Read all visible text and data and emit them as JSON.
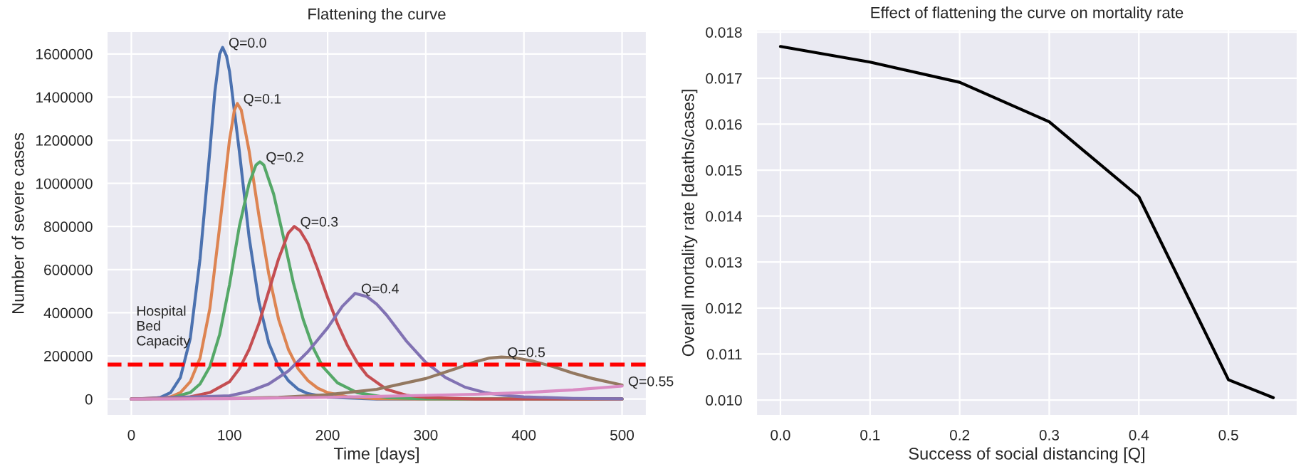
{
  "chart_data": [
    {
      "type": "line",
      "title": "Flattening the curve",
      "xlabel": "Time [days]",
      "ylabel": "Number of severe cases",
      "xlim": [
        -25,
        525
      ],
      "ylim": [
        -77000,
        1705000
      ],
      "xticks": [
        0,
        100,
        200,
        300,
        400,
        500
      ],
      "yticks": [
        0,
        200000,
        400000,
        600000,
        800000,
        1000000,
        1200000,
        1400000,
        1600000
      ],
      "grid": true,
      "series": [
        {
          "color": "#4c72b0",
          "x": [
            0,
            20,
            30,
            40,
            50,
            60,
            70,
            80,
            85,
            90,
            93,
            97,
            100,
            110,
            120,
            130,
            140,
            150,
            160,
            170,
            180,
            200,
            250,
            300,
            500
          ],
          "values": [
            0,
            2000,
            8000,
            30000,
            100000,
            280000,
            650000,
            1150000,
            1420000,
            1600000,
            1630000,
            1590000,
            1520000,
            1150000,
            750000,
            450000,
            260000,
            150000,
            85000,
            45000,
            25000,
            8000,
            0,
            0,
            0
          ]
        },
        {
          "color": "#dd8452",
          "x": [
            0,
            30,
            40,
            50,
            60,
            70,
            80,
            90,
            100,
            105,
            108,
            112,
            120,
            130,
            140,
            150,
            160,
            170,
            180,
            190,
            200,
            220,
            250,
            300,
            500
          ],
          "values": [
            0,
            3000,
            10000,
            30000,
            80000,
            190000,
            420000,
            800000,
            1200000,
            1340000,
            1370000,
            1340000,
            1150000,
            850000,
            580000,
            370000,
            230000,
            140000,
            85000,
            50000,
            30000,
            10000,
            2000,
            0,
            0
          ]
        },
        {
          "color": "#55a868",
          "x": [
            0,
            40,
            60,
            70,
            80,
            90,
            100,
            110,
            120,
            127,
            131,
            135,
            145,
            155,
            165,
            175,
            185,
            195,
            210,
            230,
            260,
            300,
            500
          ],
          "values": [
            0,
            5000,
            30000,
            70000,
            150000,
            300000,
            530000,
            800000,
            1000000,
            1085000,
            1100000,
            1085000,
            950000,
            750000,
            540000,
            370000,
            240000,
            150000,
            75000,
            30000,
            7000,
            1000,
            0
          ]
        },
        {
          "color": "#c44e52",
          "x": [
            0,
            60,
            80,
            100,
            110,
            120,
            130,
            140,
            150,
            160,
            166,
            172,
            180,
            190,
            200,
            210,
            220,
            230,
            240,
            260,
            280,
            300,
            350,
            500
          ],
          "values": [
            0,
            10000,
            30000,
            80000,
            140000,
            230000,
            350000,
            500000,
            650000,
            770000,
            800000,
            780000,
            720000,
            600000,
            470000,
            350000,
            250000,
            170000,
            110000,
            45000,
            18000,
            7000,
            0,
            0
          ]
        },
        {
          "color": "#8172b3",
          "x": [
            0,
            100,
            120,
            140,
            160,
            180,
            200,
            215,
            228,
            240,
            250,
            260,
            280,
            300,
            320,
            340,
            360,
            380,
            400,
            450,
            500
          ],
          "values": [
            0,
            15000,
            35000,
            70000,
            130000,
            220000,
            330000,
            430000,
            490000,
            475000,
            440000,
            390000,
            270000,
            170000,
            100000,
            55000,
            30000,
            17000,
            10000,
            3000,
            1000
          ]
        },
        {
          "color": "#937860",
          "x": [
            0,
            100,
            150,
            200,
            250,
            300,
            330,
            350,
            365,
            377,
            390,
            410,
            430,
            450,
            470,
            500
          ],
          "values": [
            0,
            3000,
            8000,
            20000,
            45000,
            95000,
            140000,
            172000,
            190000,
            195000,
            192000,
            175000,
            150000,
            120000,
            95000,
            65000
          ]
        },
        {
          "color": "#da8bc3",
          "x": [
            0,
            100,
            200,
            300,
            350,
            400,
            450,
            500
          ],
          "values": [
            0,
            2000,
            8000,
            17000,
            22000,
            30000,
            42000,
            60000
          ]
        }
      ],
      "ref_lines": [
        {
          "axis": "y",
          "value": 160000,
          "label": "Hospital\nBed\nCapacity",
          "color": "#ff0000",
          "line_style": "dashed"
        }
      ],
      "annotations": [
        {
          "text": "Q=0.0",
          "x": 93,
          "y": 1630000
        },
        {
          "text": "Q=0.1",
          "x": 108,
          "y": 1370000
        },
        {
          "text": "Q=0.2",
          "x": 131,
          "y": 1100000
        },
        {
          "text": "Q=0.3",
          "x": 166,
          "y": 800000
        },
        {
          "text": "Q=0.4",
          "x": 228,
          "y": 490000
        },
        {
          "text": "Q=0.5",
          "x": 377,
          "y": 195000
        },
        {
          "text": "Q=0.55",
          "x": 500,
          "y": 60000
        }
      ]
    },
    {
      "type": "line",
      "title": "Effect of flattening the curve on mortality rate",
      "xlabel": "Success of social distancing [Q]",
      "ylabel": "Overall mortality rate [deaths/cases]",
      "xlim": [
        -0.027,
        0.577
      ],
      "ylim": [
        0.00966,
        0.01805
      ],
      "xticks": [
        {
          "value": 0,
          "label": "0.0"
        },
        0.1,
        0.2,
        0.3,
        0.4,
        0.5
      ],
      "yticks": [
        {
          "value": 0.01,
          "label": "0.010"
        },
        0.011,
        0.012,
        0.013,
        0.014,
        0.015,
        0.016,
        0.017,
        0.018
      ],
      "grid": true,
      "series": [
        {
          "color": "#000000",
          "x": [
            0,
            0.1,
            0.2,
            0.3,
            0.4,
            0.5,
            0.55
          ],
          "values": [
            0.01769,
            0.01735,
            0.01691,
            0.01605,
            0.01442,
            0.01044,
            0.01005
          ]
        }
      ]
    }
  ]
}
